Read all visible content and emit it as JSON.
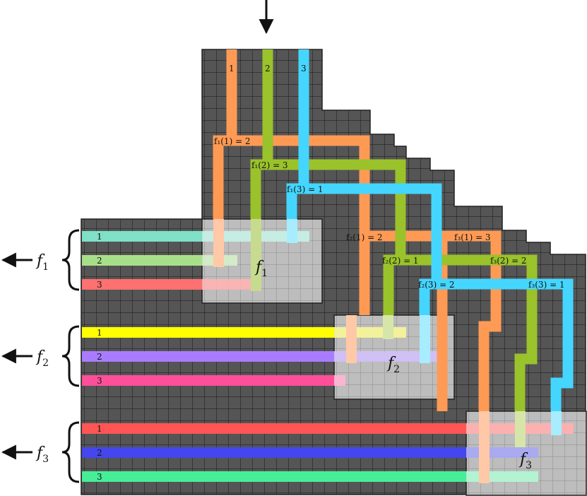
{
  "colors": {
    "grid_fill": "#555555",
    "grid_line": "#222222",
    "block_fill": "#b8b8b8",
    "in1": "#ff9a55",
    "in2": "#9ac22a",
    "in3": "#44d6ff",
    "f1_out": [
      "#7fe0c8",
      "#a8e08a",
      "#ff7070"
    ],
    "f2_out": [
      "#ffff00",
      "#a97cff",
      "#ff4f9a"
    ],
    "f3_out": [
      "#ff5555",
      "#4646ee",
      "#46ee98"
    ]
  },
  "inputs": [
    "1",
    "2",
    "3"
  ],
  "outputs": [
    {
      "name": "f",
      "index": "1",
      "rows": [
        "1",
        "2",
        "3"
      ]
    },
    {
      "name": "f",
      "index": "2",
      "rows": [
        "1",
        "2",
        "3"
      ]
    },
    {
      "name": "f",
      "index": "3",
      "rows": [
        "1",
        "2",
        "3"
      ]
    }
  ],
  "blocks": [
    {
      "name": "f",
      "index": "1"
    },
    {
      "name": "f",
      "index": "2"
    },
    {
      "name": "f",
      "index": "3"
    }
  ],
  "mappings": [
    {
      "text": "f₁(1) = 2"
    },
    {
      "text": "f₁(2) = 3"
    },
    {
      "text": "f₁(3) = 1"
    },
    {
      "text": "f₂(1) = 2"
    },
    {
      "text": "f₂(2) = 1"
    },
    {
      "text": "f₂(3) = 2"
    },
    {
      "text": "f₃(1) = 3"
    },
    {
      "text": "f₃(2) = 2"
    },
    {
      "text": "f₃(3) = 1"
    }
  ]
}
